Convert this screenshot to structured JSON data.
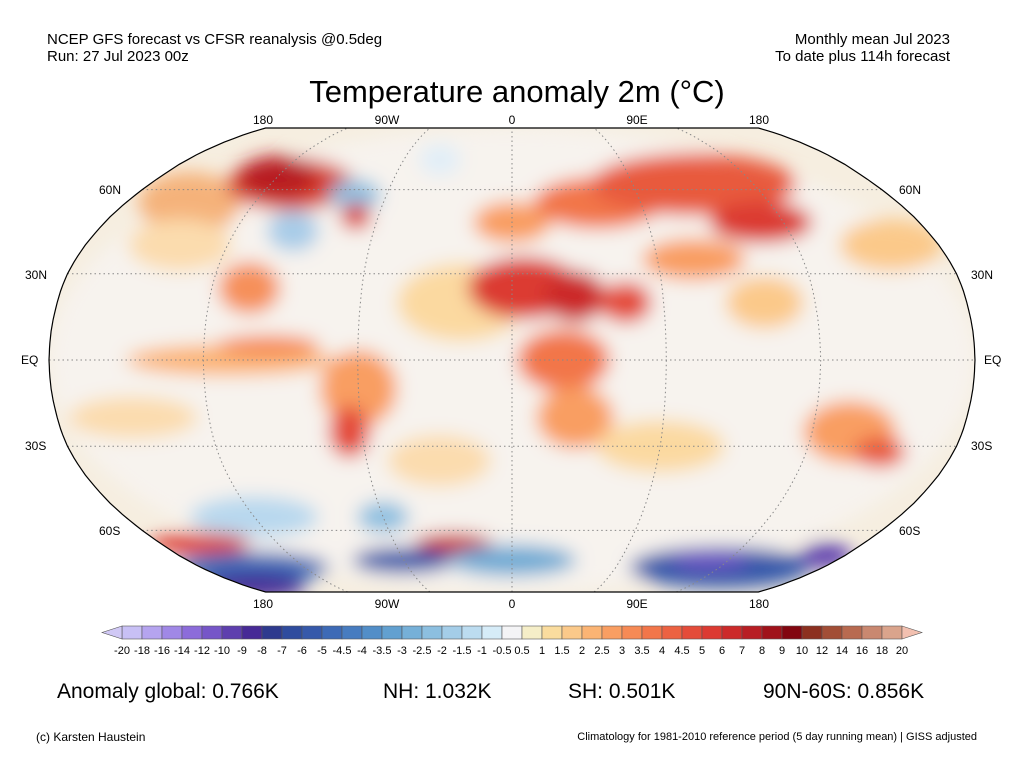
{
  "header": {
    "left_line1": "NCEP GFS forecast vs CFSR reanalysis @0.5deg",
    "left_line2": "Run: 27 Jul 2023 00z",
    "right_line1": "Monthly mean Jul 2023",
    "right_line2": "To date plus 114h forecast",
    "title": "Temperature anomaly 2m (°C)"
  },
  "map": {
    "projection": "Robinson",
    "lon_labels": [
      "180",
      "90W",
      "0",
      "90E",
      "180"
    ],
    "lat_labels": [
      "60N",
      "30N",
      "EQ",
      "30S",
      "60S"
    ],
    "grid": "dotted"
  },
  "colorbar": {
    "labels": [
      "-20",
      "-18",
      "-16",
      "-14",
      "-12",
      "-10",
      "-9",
      "-8",
      "-7",
      "-6",
      "-5",
      "-4.5",
      "-4",
      "-3.5",
      "-3",
      "-2.5",
      "-2",
      "-1.5",
      "-1",
      "-0.5",
      "0.5",
      "1",
      "1.5",
      "2",
      "2.5",
      "3",
      "3.5",
      "4",
      "4.5",
      "5",
      "6",
      "7",
      "8",
      "9",
      "10",
      "12",
      "14",
      "16",
      "18",
      "20"
    ],
    "colors": [
      "#c8c0f5",
      "#b5a4ef",
      "#a088e6",
      "#8c6cda",
      "#7656c8",
      "#5e3fae",
      "#472a96",
      "#2e3a8e",
      "#2f4c9e",
      "#3659aa",
      "#3d6ab6",
      "#477cc0",
      "#528ec8",
      "#62a0d0",
      "#76b0d8",
      "#8cbfe0",
      "#a4cde8",
      "#bcdcf0",
      "#d6ecf8",
      "#f4f4f6",
      "#f5eec8",
      "#fadc9e",
      "#fbc98a",
      "#fbb474",
      "#f99e62",
      "#f68a55",
      "#f2764a",
      "#ec6242",
      "#e44c3a",
      "#dc3a32",
      "#cc2a2a",
      "#b81e24",
      "#a0121a",
      "#820610",
      "#8c3020",
      "#a24e36",
      "#b86a50",
      "#c98870",
      "#daa48c"
    ],
    "under_color": "#d0c8f5",
    "over_color": "#f2c0b0"
  },
  "stats": {
    "global": "Anomaly global: 0.766K",
    "nh": "NH: 1.032K",
    "sh": "SH: 0.501K",
    "band": "90N-60S: 0.856K"
  },
  "footer": {
    "credit": "(c) Karsten Haustein",
    "note": "Climatology for 1981-2010 reference period (5 day running mean) | GISS adjusted"
  }
}
